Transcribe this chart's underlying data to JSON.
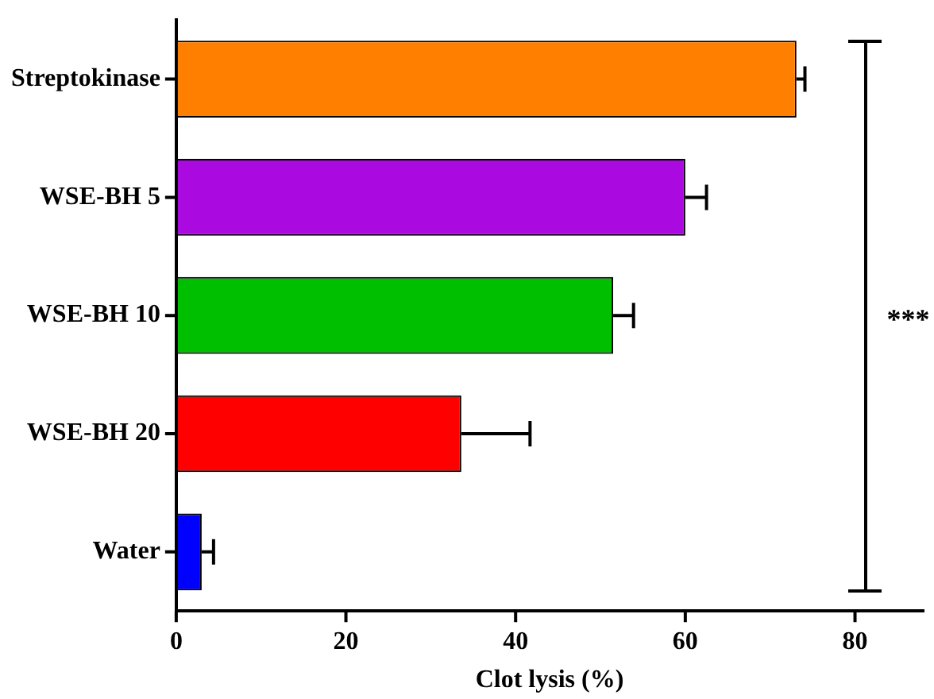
{
  "chart_data": {
    "type": "bar",
    "orientation": "horizontal",
    "xlabel": "Clot lysis (%)",
    "categories": [
      "Streptokinase",
      "WSE-BH 5",
      "WSE-BH 10",
      "WSE-BH 20",
      "Water"
    ],
    "values": [
      73.1,
      60.0,
      51.5,
      33.6,
      3.0
    ],
    "errors": [
      1.0,
      2.5,
      2.4,
      8.1,
      1.4
    ],
    "colors": [
      "#ff8000",
      "#aa0ae0",
      "#00bf00",
      "#ff0000",
      "#0000ff"
    ],
    "xlim": [
      0,
      88
    ],
    "xticks": [
      0,
      20,
      40,
      60,
      80
    ],
    "grid": false,
    "legend": false,
    "annotations": [
      "***"
    ]
  }
}
